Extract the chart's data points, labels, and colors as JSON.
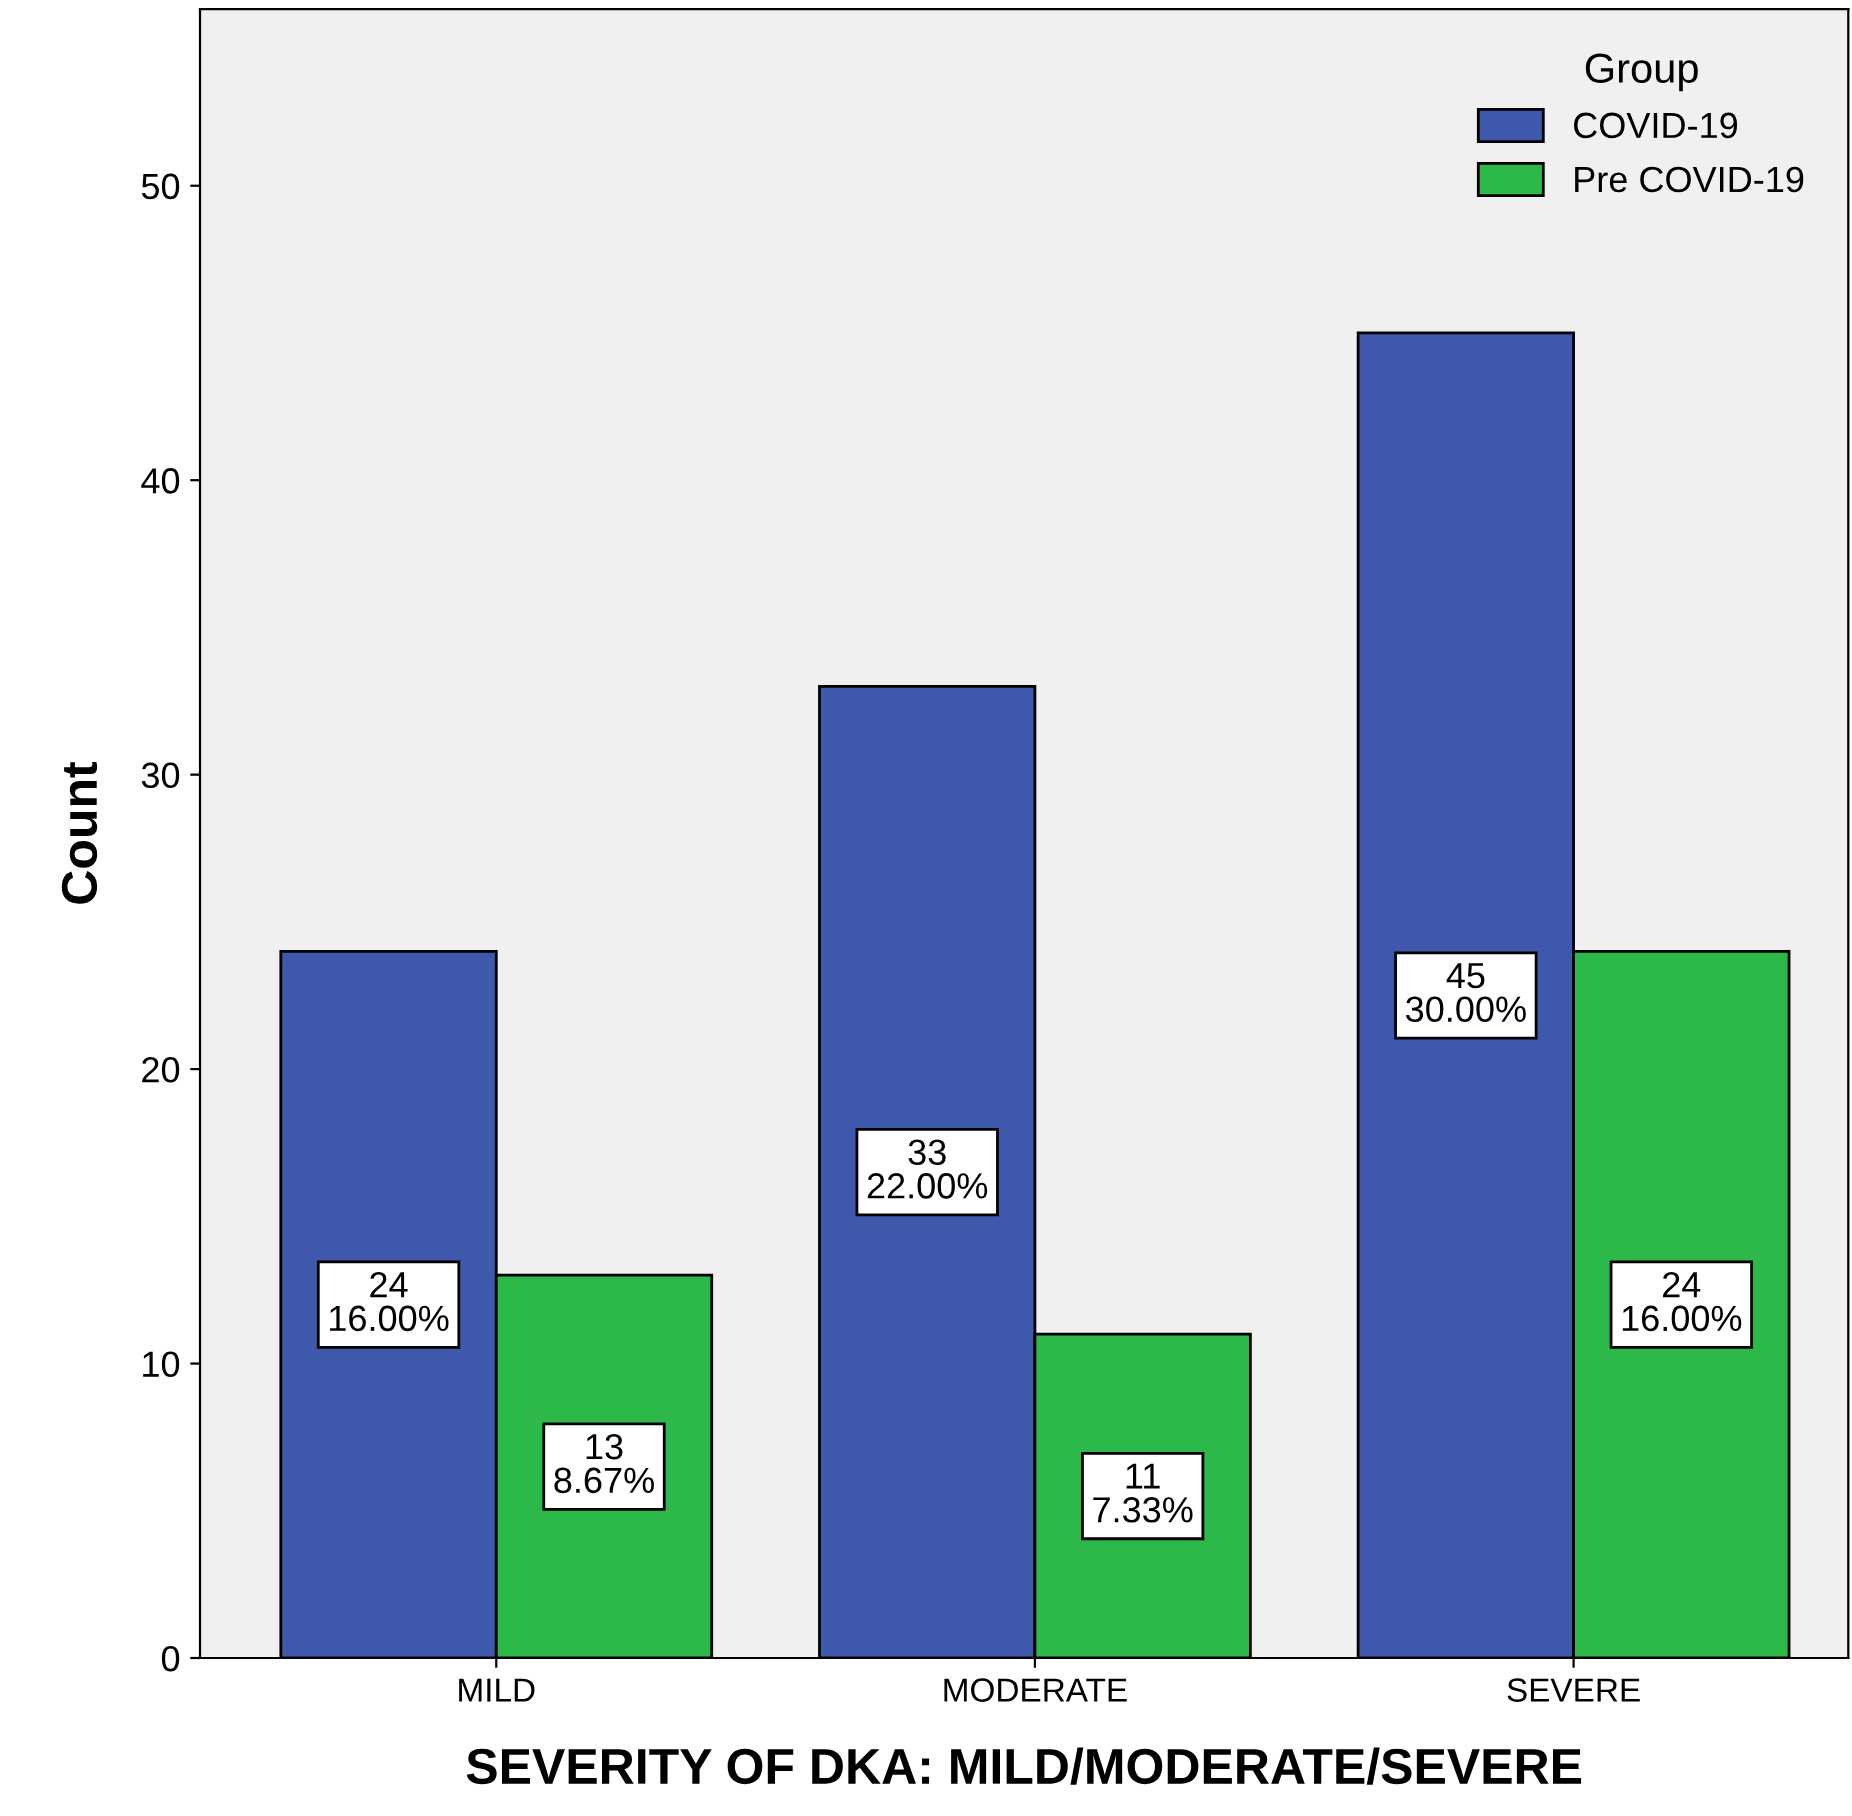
{
  "chart_data": {
    "type": "bar",
    "xlabel": "SEVERITY OF DKA: MILD/MODERATE/SEVERE",
    "ylabel": "Count",
    "legend_title": "Group",
    "categories": [
      "MILD",
      "MODERATE",
      "SEVERE"
    ],
    "series": [
      {
        "name": "COVID-19",
        "color": "#3e58ac",
        "values": [
          24,
          33,
          45
        ],
        "value_labels": [
          "24\n16.00%",
          "33\n22.00%",
          "45\n30.00%"
        ]
      },
      {
        "name": "Pre COVID-19",
        "color": "#2db84a",
        "values": [
          13,
          11,
          24
        ],
        "value_labels": [
          "13\n8.67%",
          "11\n7.33%",
          "24\n16.00%"
        ]
      }
    ],
    "ylim": [
      0,
      56
    ],
    "yticks": [
      0,
      10,
      20,
      30,
      40,
      50
    ],
    "grid": false,
    "legend": "top right"
  }
}
